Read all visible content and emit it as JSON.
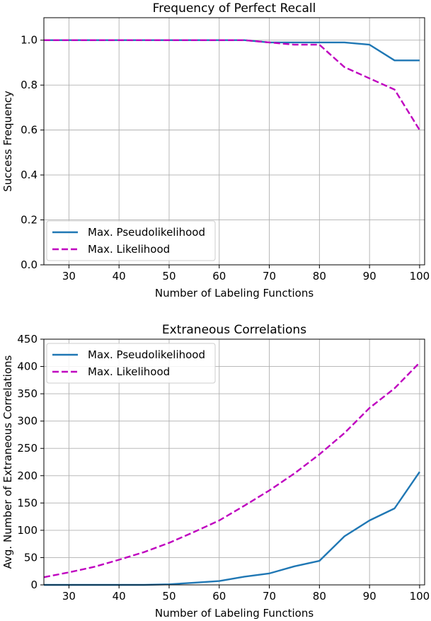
{
  "chart_data": [
    {
      "type": "line",
      "title": "Frequency of Perfect Recall",
      "xlabel": "Number of Labeling Functions",
      "ylabel": "Success Frequency",
      "xlim": [
        25,
        101
      ],
      "ylim": [
        0,
        1.1
      ],
      "xticks": [
        30,
        40,
        50,
        60,
        70,
        80,
        90,
        100
      ],
      "yticks": [
        0.0,
        0.2,
        0.4,
        0.6,
        0.8,
        1.0
      ],
      "ytick_labels": [
        "0.0",
        "0.2",
        "0.4",
        "0.6",
        "0.8",
        "1.0"
      ],
      "grid": true,
      "legend_position": "lower-left",
      "series": [
        {
          "name": "Max. Pseudolikelihood",
          "color": "#1f77b4",
          "dash": "solid",
          "x": [
            25,
            30,
            35,
            40,
            45,
            50,
            55,
            60,
            65,
            70,
            75,
            80,
            85,
            90,
            95,
            100
          ],
          "y": [
            1.0,
            1.0,
            1.0,
            1.0,
            1.0,
            1.0,
            1.0,
            1.0,
            1.0,
            0.99,
            0.99,
            0.99,
            0.99,
            0.98,
            0.91,
            0.91
          ]
        },
        {
          "name": "Max. Likelihood",
          "color": "#bf00bf",
          "dash": "dashed",
          "x": [
            25,
            30,
            35,
            40,
            45,
            50,
            55,
            60,
            65,
            70,
            75,
            80,
            85,
            90,
            95,
            100
          ],
          "y": [
            1.0,
            1.0,
            1.0,
            1.0,
            1.0,
            1.0,
            1.0,
            1.0,
            1.0,
            0.99,
            0.98,
            0.98,
            0.88,
            0.83,
            0.78,
            0.6
          ]
        }
      ]
    },
    {
      "type": "line",
      "title": "Extraneous Correlations",
      "xlabel": "Number of Labeling Functions",
      "ylabel": "Avg. Number of Extraneous Correlations",
      "xlim": [
        25,
        101
      ],
      "ylim": [
        0,
        450
      ],
      "xticks": [
        30,
        40,
        50,
        60,
        70,
        80,
        90,
        100
      ],
      "yticks": [
        0,
        50,
        100,
        150,
        200,
        250,
        300,
        350,
        400,
        450
      ],
      "ytick_labels": [
        "0",
        "50",
        "100",
        "150",
        "200",
        "250",
        "300",
        "350",
        "400",
        "450"
      ],
      "grid": true,
      "legend_position": "upper-left",
      "series": [
        {
          "name": "Max. Pseudolikelihood",
          "color": "#1f77b4",
          "dash": "solid",
          "x": [
            25,
            30,
            35,
            40,
            45,
            50,
            55,
            60,
            65,
            70,
            75,
            80,
            85,
            90,
            95,
            100
          ],
          "y": [
            0,
            0,
            0,
            0,
            0,
            1,
            4,
            7,
            15,
            21,
            34,
            44,
            89,
            118,
            140,
            207
          ]
        },
        {
          "name": "Max. Likelihood",
          "color": "#bf00bf",
          "dash": "dashed",
          "x": [
            25,
            30,
            35,
            40,
            45,
            50,
            55,
            60,
            65,
            70,
            75,
            80,
            85,
            90,
            95,
            100
          ],
          "y": [
            14,
            23,
            33,
            46,
            60,
            77,
            97,
            118,
            145,
            173,
            204,
            239,
            278,
            324,
            360,
            407
          ]
        }
      ]
    }
  ]
}
